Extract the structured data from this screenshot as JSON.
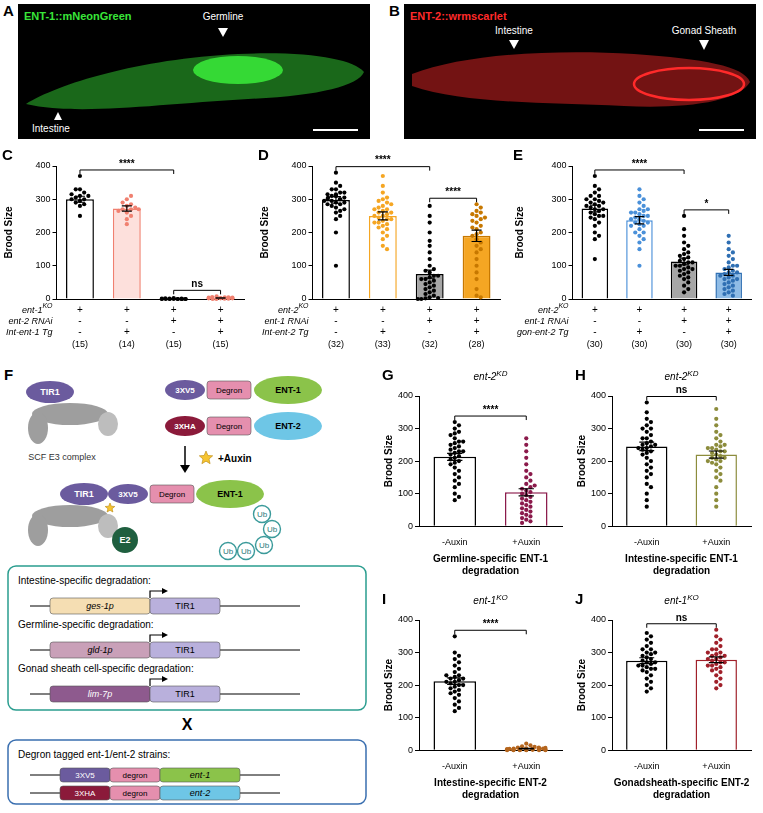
{
  "images": [
    {
      "panel": "A",
      "title": "ENT-1::mNeonGreen",
      "color": "#39e639",
      "annotations": [
        "Germline",
        "Intestine"
      ]
    },
    {
      "panel": "B",
      "title": "ENT-2::wrmscarlet",
      "color": "#ff2a2a",
      "annotations": [
        "Intestine",
        "Gonad Sheath"
      ]
    }
  ],
  "diagram": {
    "panel": "F",
    "tir1": "TIR1",
    "scf": "SCF E3 complex",
    "tagged": [
      {
        "tag": "3XV5",
        "degron": "Degron",
        "protein": "ENT-1"
      },
      {
        "tag": "3XHA",
        "degron": "Degron",
        "protein": "ENT-2"
      }
    ],
    "auxin": "+Auxin",
    "ub": [
      "Ub",
      "Ub",
      "Ub",
      "Ub",
      "Ub"
    ],
    "e2": "E2",
    "tissues": [
      {
        "title": "Intestine-specific degradation:",
        "promoter": "ges-1p",
        "gene": "TIR1"
      },
      {
        "title": "Germline-specific degradation:",
        "promoter": "gld-1p",
        "gene": "TIR1"
      },
      {
        "title": "Gonad sheath cell-specific degradation:",
        "promoter": "lim-7p",
        "gene": "TIR1"
      }
    ],
    "cross": "X",
    "strains": {
      "title": "Degron tagged ent-1/ent-2 strains:",
      "constructs": [
        [
          "3XV5",
          "degron",
          "ent-1"
        ],
        [
          "3XHA",
          "degron",
          "ent-2"
        ]
      ]
    }
  },
  "chart_data": [
    {
      "panel": "C",
      "type": "bar",
      "categories": [
        null,
        null,
        null,
        null
      ],
      "values": [
        300,
        272,
        1,
        3
      ],
      "errors": [
        9,
        8,
        0.3,
        0.6
      ],
      "points": [
        [
          310,
          330,
          370,
          295,
          300,
          285,
          320,
          280,
          250,
          305,
          310,
          290,
          300,
          315,
          330
        ],
        [
          260,
          280,
          270,
          300,
          250,
          310,
          270,
          240,
          225,
          275,
          265,
          285,
          290,
          270
        ],
        [
          0,
          0,
          1,
          0,
          2,
          0,
          0,
          1,
          0,
          0,
          3,
          0,
          1,
          0,
          0
        ],
        [
          2,
          5,
          0,
          3,
          6,
          1,
          4,
          2,
          0,
          8,
          3,
          1,
          5,
          2,
          4
        ]
      ],
      "colors": [
        {
          "fill": "#ffffff",
          "edge": "#000000"
        },
        {
          "fill": "#fde0dc",
          "edge": "#f08070"
        },
        {
          "fill": "#ffffff",
          "edge": "#000000"
        },
        {
          "fill": "#fde0dc",
          "edge": "#f08070"
        }
      ],
      "conditions": [
        {
          "label": "ent-1",
          "sup": "KO",
          "marks": [
            "+",
            "+",
            "+",
            "+"
          ]
        },
        {
          "label": "ent-2 RNAi",
          "marks": [
            "-",
            "-",
            "+",
            "+"
          ]
        },
        {
          "label": "Int-ent-1 Tg",
          "marks": [
            "-",
            "+",
            "-",
            "+"
          ]
        }
      ],
      "n": [
        "(15)",
        "(14)",
        "(15)",
        "(15)"
      ],
      "significance": [
        {
          "from": 0,
          "to": 2,
          "label": "****"
        },
        {
          "from": 2,
          "to": 3,
          "label": "ns"
        }
      ],
      "ylabel": "Brood Size",
      "ylim": [
        0,
        400
      ],
      "yticks": [
        0,
        100,
        200,
        300,
        400
      ],
      "grid": false,
      "tick_labels": "y"
    },
    {
      "panel": "D",
      "type": "bar",
      "categories": [
        null,
        null,
        null,
        null
      ],
      "values": [
        298,
        250,
        75,
        190
      ],
      "errors": [
        10,
        12,
        12,
        17
      ],
      "points": [
        [
          380,
          350,
          330,
          320,
          310,
          300,
          310,
          290,
          305,
          295,
          315,
          285,
          300,
          280,
          320,
          275,
          290,
          310,
          300,
          265,
          285,
          295,
          305,
          270,
          260,
          250,
          240,
          330,
          340,
          200,
          100,
          315
        ],
        [
          370,
          340,
          320,
          300,
          290,
          280,
          270,
          265,
          260,
          255,
          250,
          245,
          240,
          235,
          230,
          225,
          220,
          215,
          210,
          200,
          190,
          180,
          160,
          150,
          260,
          275,
          285,
          250,
          240,
          230,
          305,
          295,
          270
        ],
        [
          280,
          250,
          230,
          200,
          175,
          160,
          140,
          120,
          100,
          90,
          80,
          70,
          65,
          60,
          55,
          50,
          45,
          40,
          35,
          30,
          25,
          20,
          15,
          10,
          5,
          3,
          2,
          0,
          0,
          70,
          85,
          60
        ],
        [
          285,
          275,
          265,
          260,
          255,
          250,
          240,
          230,
          220,
          210,
          200,
          195,
          190,
          180,
          170,
          160,
          150,
          140,
          120,
          100,
          80,
          60,
          30,
          10,
          5,
          215,
          235,
          245
        ]
      ],
      "colors": [
        {
          "fill": "#ffffff",
          "edge": "#000000"
        },
        {
          "fill": "#ffffff",
          "edge": "#f5a623"
        },
        {
          "fill": "#a6a6a6",
          "edge": "#000000"
        },
        {
          "fill": "#f5a623",
          "edge": "#c77800"
        }
      ],
      "conditions": [
        {
          "label": "ent-2",
          "sup": "KO",
          "marks": [
            "+",
            "+",
            "+",
            "+"
          ]
        },
        {
          "label": "ent-1 RNAi",
          "marks": [
            "-",
            "-",
            "+",
            "+"
          ]
        },
        {
          "label": "Int-ent-2 Tg",
          "marks": [
            "-",
            "+",
            "-",
            "+"
          ]
        }
      ],
      "n": [
        "(32)",
        "(33)",
        "(32)",
        "(28)"
      ],
      "significance": [
        {
          "from": 0,
          "to": 2,
          "label": "****"
        },
        {
          "from": 2,
          "to": 3,
          "label": "****"
        }
      ],
      "ylabel": "Brood Size",
      "ylim": [
        0,
        400
      ],
      "yticks": [
        0,
        100,
        200,
        300,
        400
      ],
      "grid": false,
      "tick_labels": "y"
    },
    {
      "panel": "E",
      "type": "bar",
      "categories": [
        null,
        null,
        null,
        null
      ],
      "values": [
        272,
        237,
        113,
        80
      ],
      "errors": [
        10,
        11,
        10,
        9
      ],
      "points": [
        [
          370,
          340,
          330,
          320,
          310,
          300,
          295,
          290,
          285,
          280,
          275,
          270,
          265,
          260,
          255,
          250,
          250,
          245,
          240,
          230,
          220,
          200,
          190,
          180,
          120,
          290,
          300,
          310,
          280,
          270
        ],
        [
          330,
          310,
          300,
          290,
          280,
          270,
          265,
          260,
          255,
          250,
          245,
          240,
          235,
          230,
          225,
          220,
          210,
          200,
          190,
          180,
          170,
          150,
          100,
          230,
          240,
          250,
          260,
          220,
          200,
          270
        ],
        [
          250,
          210,
          190,
          170,
          160,
          150,
          140,
          135,
          130,
          125,
          120,
          115,
          110,
          105,
          100,
          95,
          90,
          85,
          80,
          75,
          70,
          65,
          60,
          50,
          40,
          30,
          20,
          110,
          100,
          90
        ],
        [
          190,
          170,
          150,
          140,
          130,
          120,
          110,
          100,
          95,
          90,
          85,
          80,
          75,
          70,
          65,
          60,
          55,
          50,
          45,
          40,
          35,
          30,
          25,
          20,
          15,
          10,
          80,
          70,
          60,
          100
        ]
      ],
      "colors": [
        {
          "fill": "#ffffff",
          "edge": "#000000"
        },
        {
          "fill": "#ffffff",
          "edge": "#4a90d9"
        },
        {
          "fill": "#a6a6a6",
          "edge": "#000000"
        },
        {
          "fill": "#8fbce6",
          "edge": "#2f6fb3"
        }
      ],
      "conditions": [
        {
          "label": "ent-2",
          "sup": "KO",
          "marks": [
            "+",
            "+",
            "+",
            "+"
          ]
        },
        {
          "label": "ent-1 RNAi",
          "marks": [
            "-",
            "-",
            "+",
            "+"
          ]
        },
        {
          "label": "gon-ent-2 Tg",
          "marks": [
            "-",
            "+",
            "-",
            "+"
          ]
        }
      ],
      "n": [
        "(30)",
        "(30)",
        "(30)",
        "(30)"
      ],
      "significance": [
        {
          "from": 0,
          "to": 2,
          "label": "****"
        },
        {
          "from": 2,
          "to": 3,
          "label": "*"
        }
      ],
      "ylabel": "Brood Size",
      "ylim": [
        0,
        400
      ],
      "yticks": [
        0,
        100,
        200,
        300,
        400
      ],
      "grid": false,
      "tick_labels": "y"
    },
    {
      "panel": "G",
      "type": "bar",
      "heading": {
        "label": "ent-2",
        "sup": "KD"
      },
      "categories": [
        "-Auxin",
        "+Auxin"
      ],
      "values": [
        213,
        104
      ],
      "errors": [
        11,
        11
      ],
      "points": [
        [
          320,
          310,
          300,
          290,
          285,
          280,
          270,
          260,
          255,
          250,
          245,
          240,
          235,
          230,
          225,
          220,
          215,
          210,
          205,
          200,
          195,
          190,
          180,
          170,
          160,
          150,
          140,
          130,
          120,
          100,
          90,
          80,
          260,
          230
        ],
        [
          270,
          250,
          230,
          210,
          190,
          170,
          160,
          150,
          140,
          130,
          120,
          110,
          105,
          100,
          95,
          90,
          85,
          80,
          75,
          70,
          65,
          60,
          55,
          50,
          45,
          40,
          35,
          30,
          25,
          20,
          15,
          10,
          115,
          125
        ]
      ],
      "colors": [
        {
          "fill": "#ffffff",
          "edge": "#000000"
        },
        {
          "fill": "#ffffff",
          "edge": "#8b1a4b"
        }
      ],
      "significance": [
        {
          "from": 0,
          "to": 1,
          "label": "****"
        }
      ],
      "xlabel": "Germline-specific ENT-1 degradation",
      "ylabel": "Brood Size",
      "ylim": [
        0,
        400
      ],
      "yticks": [
        0,
        100,
        200,
        300,
        400
      ],
      "grid": false
    },
    {
      "panel": "H",
      "type": "bar",
      "heading": {
        "label": "ent-2",
        "sup": "KD"
      },
      "categories": [
        "-Auxin",
        "+Auxin"
      ],
      "values": [
        245,
        220
      ],
      "errors": [
        13,
        11
      ],
      "points": [
        [
          380,
          350,
          330,
          320,
          310,
          300,
          290,
          280,
          270,
          260,
          255,
          250,
          245,
          240,
          235,
          230,
          225,
          220,
          210,
          200,
          190,
          180,
          170,
          160,
          150,
          130,
          120,
          100,
          80,
          60,
          270,
          300,
          250,
          240
        ],
        [
          360,
          330,
          310,
          290,
          280,
          270,
          260,
          250,
          245,
          240,
          235,
          230,
          225,
          220,
          215,
          210,
          205,
          200,
          195,
          190,
          180,
          170,
          160,
          150,
          140,
          120,
          100,
          80,
          60,
          230,
          240,
          250,
          210,
          200
        ]
      ],
      "colors": [
        {
          "fill": "#ffffff",
          "edge": "#000000"
        },
        {
          "fill": "#ffffff",
          "edge": "#8c8c3c"
        }
      ],
      "significance": [
        {
          "from": 0,
          "to": 1,
          "label": "ns"
        }
      ],
      "xlabel": "Intestine-specific ENT-1 degradation",
      "ylabel": "Brood Size",
      "ylim": [
        0,
        400
      ],
      "yticks": [
        0,
        100,
        200,
        300,
        400
      ],
      "grid": false
    },
    {
      "panel": "I",
      "type": "bar",
      "heading": {
        "label": "ent-1",
        "sup": "KO"
      },
      "categories": [
        "-Auxin",
        "+Auxin"
      ],
      "values": [
        212,
        5
      ],
      "errors": [
        10,
        1
      ],
      "points": [
        [
          350,
          300,
          290,
          280,
          270,
          260,
          250,
          240,
          230,
          225,
          220,
          215,
          210,
          205,
          200,
          195,
          190,
          185,
          180,
          175,
          170,
          160,
          150,
          140,
          130,
          120,
          220,
          230,
          210,
          200
        ],
        [
          20,
          15,
          12,
          10,
          8,
          8,
          6,
          5,
          5,
          4,
          4,
          3,
          3,
          2,
          2,
          2,
          1,
          1,
          1,
          0,
          0,
          0,
          0,
          0,
          0,
          5,
          6,
          7,
          3,
          2
        ]
      ],
      "colors": [
        {
          "fill": "#ffffff",
          "edge": "#000000"
        },
        {
          "fill": "#ffffff",
          "edge": "#b5651d"
        }
      ],
      "significance": [
        {
          "from": 0,
          "to": 1,
          "label": "****"
        }
      ],
      "xlabel": "Intestine-specific ENT-2 degradation",
      "ylabel": "Brood Size",
      "ylim": [
        0,
        400
      ],
      "yticks": [
        0,
        100,
        200,
        300,
        400
      ],
      "grid": false
    },
    {
      "panel": "J",
      "type": "bar",
      "heading": {
        "label": "ent-1",
        "sup": "KO"
      },
      "categories": [
        "-Auxin",
        "+Auxin"
      ],
      "values": [
        275,
        278
      ],
      "errors": [
        9,
        9
      ],
      "points": [
        [
          360,
          350,
          340,
          330,
          320,
          310,
          300,
          295,
          290,
          285,
          280,
          275,
          270,
          265,
          260,
          255,
          250,
          245,
          240,
          230,
          220,
          210,
          200,
          190,
          180,
          300,
          310,
          270,
          260,
          250
        ],
        [
          370,
          350,
          340,
          330,
          320,
          310,
          300,
          295,
          290,
          285,
          280,
          275,
          270,
          265,
          260,
          255,
          250,
          245,
          240,
          230,
          220,
          210,
          200,
          190,
          290,
          300,
          280,
          270,
          260,
          310
        ]
      ],
      "colors": [
        {
          "fill": "#ffffff",
          "edge": "#000000"
        },
        {
          "fill": "#ffffff",
          "edge": "#a0202a"
        }
      ],
      "significance": [
        {
          "from": 0,
          "to": 1,
          "label": "ns"
        }
      ],
      "xlabel": "Gonadsheath-specific ENT-2 degradation",
      "ylabel": "Brood Size",
      "ylim": [
        0,
        400
      ],
      "yticks": [
        0,
        100,
        200,
        300,
        400
      ],
      "grid": false
    }
  ]
}
